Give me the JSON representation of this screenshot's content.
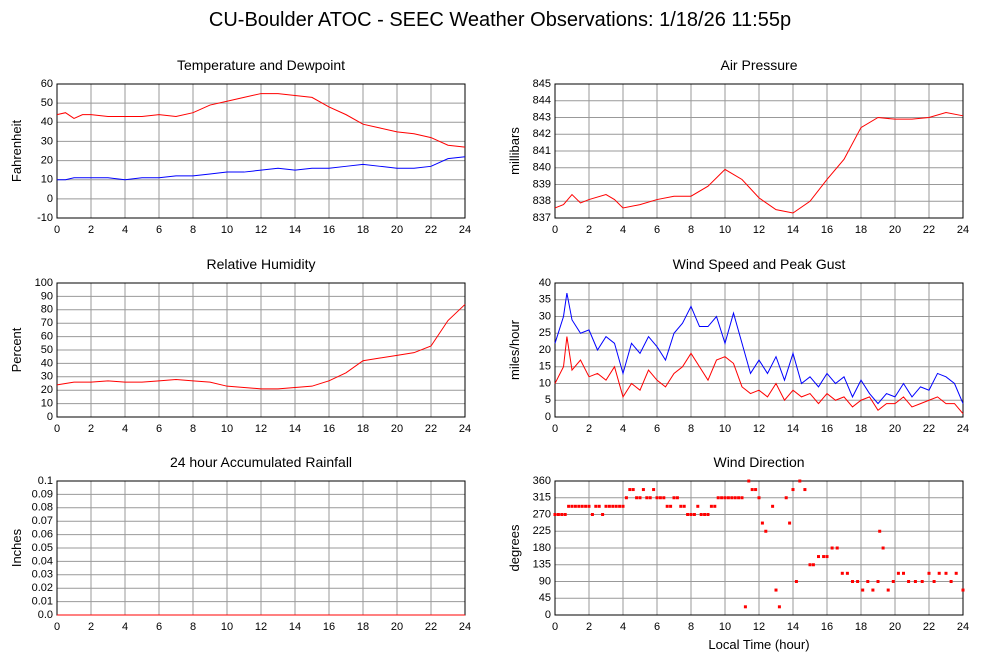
{
  "title": "CU-Boulder ATOC - SEEC Weather Observations: 1/18/26 11:55p",
  "chart_data": [
    {
      "type": "line",
      "title": "Temperature and Dewpoint",
      "ylabel": "Fahrenheit",
      "x": [
        0,
        0.5,
        1,
        1.5,
        2,
        3,
        4,
        5,
        6,
        7,
        8,
        9,
        10,
        11,
        12,
        13,
        14,
        15,
        16,
        17,
        18,
        19,
        20,
        21,
        22,
        23,
        24
      ],
      "series": [
        {
          "color": "#ff0000",
          "values": [
            44,
            45,
            42,
            44,
            44,
            43,
            43,
            43,
            44,
            43,
            45,
            49,
            51,
            53,
            55,
            55,
            54,
            53,
            48,
            44,
            39,
            37,
            35,
            34,
            32,
            28,
            27
          ]
        },
        {
          "color": "#0000ff",
          "values": [
            10,
            10,
            11,
            11,
            11,
            11,
            10,
            11,
            11,
            12,
            12,
            13,
            14,
            14,
            15,
            16,
            15,
            16,
            16,
            17,
            18,
            17,
            16,
            16,
            17,
            21,
            22
          ]
        }
      ],
      "xlim": [
        0,
        24
      ],
      "xticks": [
        0,
        2,
        4,
        6,
        8,
        10,
        12,
        14,
        16,
        18,
        20,
        22,
        24
      ],
      "ylim": [
        -10,
        60
      ],
      "yticks": [
        -10,
        0,
        10,
        20,
        30,
        40,
        50,
        60
      ],
      "grid": true
    },
    {
      "type": "line",
      "title": "Air Pressure",
      "ylabel": "millibars",
      "x": [
        0,
        0.5,
        1,
        1.5,
        2,
        3,
        3.5,
        4,
        5,
        6,
        7,
        8,
        9,
        10,
        11,
        12,
        13,
        14,
        15,
        16,
        17,
        18,
        19,
        20,
        21,
        22,
        23,
        24
      ],
      "series": [
        {
          "color": "#ff0000",
          "values": [
            837.6,
            837.8,
            838.4,
            837.9,
            838.1,
            838.4,
            838.1,
            837.6,
            837.8,
            838.1,
            838.3,
            838.3,
            838.9,
            839.9,
            839.3,
            838.2,
            837.5,
            837.3,
            838.0,
            839.3,
            840.5,
            842.4,
            843.0,
            842.9,
            842.9,
            843.0,
            843.3,
            843.1
          ]
        }
      ],
      "xlim": [
        0,
        24
      ],
      "xticks": [
        0,
        2,
        4,
        6,
        8,
        10,
        12,
        14,
        16,
        18,
        20,
        22,
        24
      ],
      "ylim": [
        837,
        845
      ],
      "yticks": [
        837,
        838,
        839,
        840,
        841,
        842,
        843,
        844,
        845
      ],
      "grid": true
    },
    {
      "type": "line",
      "title": "Relative Humidity",
      "ylabel": "Percent",
      "x": [
        0,
        0.5,
        1,
        2,
        3,
        4,
        5,
        6,
        7,
        8,
        9,
        10,
        11,
        12,
        13,
        14,
        15,
        16,
        17,
        18,
        19,
        20,
        21,
        22,
        23,
        24
      ],
      "series": [
        {
          "color": "#ff0000",
          "values": [
            24,
            25,
            26,
            26,
            27,
            26,
            26,
            27,
            28,
            27,
            26,
            23,
            22,
            21,
            21,
            22,
            23,
            27,
            33,
            42,
            44,
            46,
            48,
            53,
            72,
            84
          ]
        }
      ],
      "xlim": [
        0,
        24
      ],
      "xticks": [
        0,
        2,
        4,
        6,
        8,
        10,
        12,
        14,
        16,
        18,
        20,
        22,
        24
      ],
      "ylim": [
        0,
        100
      ],
      "yticks": [
        0,
        10,
        20,
        30,
        40,
        50,
        60,
        70,
        80,
        90,
        100
      ],
      "grid": true
    },
    {
      "type": "line",
      "title": "Wind Speed and Peak Gust",
      "ylabel": "miles/hour",
      "x": [
        0,
        0.5,
        0.7,
        1,
        1.5,
        2,
        2.5,
        3,
        3.5,
        4,
        4.5,
        5,
        5.5,
        6,
        6.5,
        7,
        7.5,
        8,
        8.5,
        9,
        9.5,
        10,
        10.5,
        11,
        11.5,
        12,
        12.5,
        13,
        13.5,
        14,
        14.5,
        15,
        15.5,
        16,
        16.5,
        17,
        17.5,
        18,
        18.5,
        19,
        19.5,
        20,
        20.5,
        21,
        21.5,
        22,
        22.5,
        23,
        23.5,
        24
      ],
      "series": [
        {
          "color": "#0000ff",
          "values": [
            22,
            30,
            37,
            29,
            25,
            26,
            20,
            24,
            22,
            13,
            22,
            19,
            24,
            21,
            17,
            25,
            28,
            33,
            27,
            27,
            30,
            22,
            31,
            22,
            13,
            17,
            13,
            18,
            11,
            19,
            10,
            12,
            9,
            13,
            10,
            12,
            6,
            11,
            7,
            4,
            7,
            6,
            10,
            6,
            9,
            8,
            13,
            12,
            10,
            4
          ]
        },
        {
          "color": "#ff0000",
          "values": [
            10,
            15,
            24,
            14,
            17,
            12,
            13,
            11,
            15,
            6,
            10,
            8,
            14,
            11,
            9,
            13,
            15,
            19,
            15,
            11,
            17,
            18,
            16,
            9,
            7,
            8,
            6,
            10,
            5,
            8,
            6,
            7,
            4,
            7,
            5,
            6,
            3,
            5,
            6,
            2,
            4,
            4,
            6,
            3,
            4,
            5,
            6,
            4,
            4,
            1
          ]
        }
      ],
      "xlim": [
        0,
        24
      ],
      "xticks": [
        0,
        2,
        4,
        6,
        8,
        10,
        12,
        14,
        16,
        18,
        20,
        22,
        24
      ],
      "ylim": [
        0,
        40
      ],
      "yticks": [
        0,
        5,
        10,
        15,
        20,
        25,
        30,
        35,
        40
      ],
      "grid": true
    },
    {
      "type": "line",
      "title": "24 hour Accumulated Rainfall",
      "ylabel": "Inches",
      "x": [
        0,
        24
      ],
      "series": [
        {
          "color": "#ff0000",
          "values": [
            0,
            0
          ]
        }
      ],
      "xlim": [
        0,
        24
      ],
      "xticks": [
        0,
        2,
        4,
        6,
        8,
        10,
        12,
        14,
        16,
        18,
        20,
        22,
        24
      ],
      "ylim": [
        0,
        0.1
      ],
      "yticks": [
        {
          "value": 0,
          "label": "0.0"
        },
        0.01,
        0.02,
        0.03,
        0.04,
        0.05,
        0.06,
        0.07,
        0.08,
        0.09,
        0.1
      ],
      "grid": true
    },
    {
      "type": "scatter",
      "title": "Wind Direction",
      "ylabel": "degrees",
      "xlabel": "Local Time (hour)",
      "x": [
        0,
        0.2,
        0.4,
        0.6,
        0.8,
        1,
        1.2,
        1.4,
        1.6,
        1.8,
        2,
        2.2,
        2.4,
        2.6,
        2.8,
        3,
        3.2,
        3.4,
        3.6,
        3.8,
        4,
        4.2,
        4.4,
        4.6,
        4.8,
        5,
        5.2,
        5.4,
        5.6,
        5.8,
        6,
        6.2,
        6.4,
        6.6,
        6.8,
        7,
        7.2,
        7.4,
        7.6,
        7.8,
        8,
        8.2,
        8.4,
        8.6,
        8.8,
        9,
        9.2,
        9.4,
        9.6,
        9.8,
        10,
        10.2,
        10.4,
        10.6,
        10.8,
        11,
        11.2,
        11.4,
        11.6,
        11.8,
        12,
        12.2,
        12.4,
        12.8,
        13,
        13.2,
        13.6,
        13.8,
        14,
        14.2,
        14.4,
        14.7,
        15,
        15.2,
        15.5,
        15.8,
        16,
        16.3,
        16.6,
        16.9,
        17.2,
        17.5,
        17.8,
        18.1,
        18.4,
        18.7,
        19,
        19.1,
        19.3,
        19.6,
        19.9,
        20.2,
        20.5,
        20.8,
        21.2,
        21.6,
        22,
        22.3,
        22.6,
        23,
        23.3,
        23.6,
        24
      ],
      "series": [
        {
          "color": "#ff0000",
          "values": [
            270,
            270,
            270,
            270,
            292,
            292,
            292,
            292,
            292,
            292,
            292,
            270,
            292,
            292,
            270,
            292,
            292,
            292,
            292,
            292,
            292,
            315,
            337,
            337,
            315,
            315,
            337,
            315,
            315,
            337,
            315,
            315,
            315,
            292,
            292,
            315,
            315,
            292,
            292,
            270,
            270,
            270,
            292,
            270,
            270,
            270,
            292,
            292,
            315,
            315,
            315,
            315,
            315,
            315,
            315,
            315,
            22,
            360,
            337,
            337,
            315,
            247,
            225,
            292,
            67,
            22,
            315,
            247,
            337,
            90,
            360,
            337,
            135,
            135,
            157,
            157,
            157,
            180,
            180,
            112,
            112,
            90,
            90,
            67,
            90,
            67,
            90,
            225,
            180,
            67,
            90,
            112,
            112,
            90,
            90,
            90,
            112,
            90,
            112,
            112,
            90,
            112,
            67
          ]
        }
      ],
      "xlim": [
        0,
        24
      ],
      "xticks": [
        0,
        2,
        4,
        6,
        8,
        10,
        12,
        14,
        16,
        18,
        20,
        22,
        24
      ],
      "ylim": [
        0,
        360
      ],
      "yticks": [
        0,
        45,
        90,
        135,
        180,
        225,
        270,
        315,
        360
      ],
      "grid": true
    }
  ]
}
